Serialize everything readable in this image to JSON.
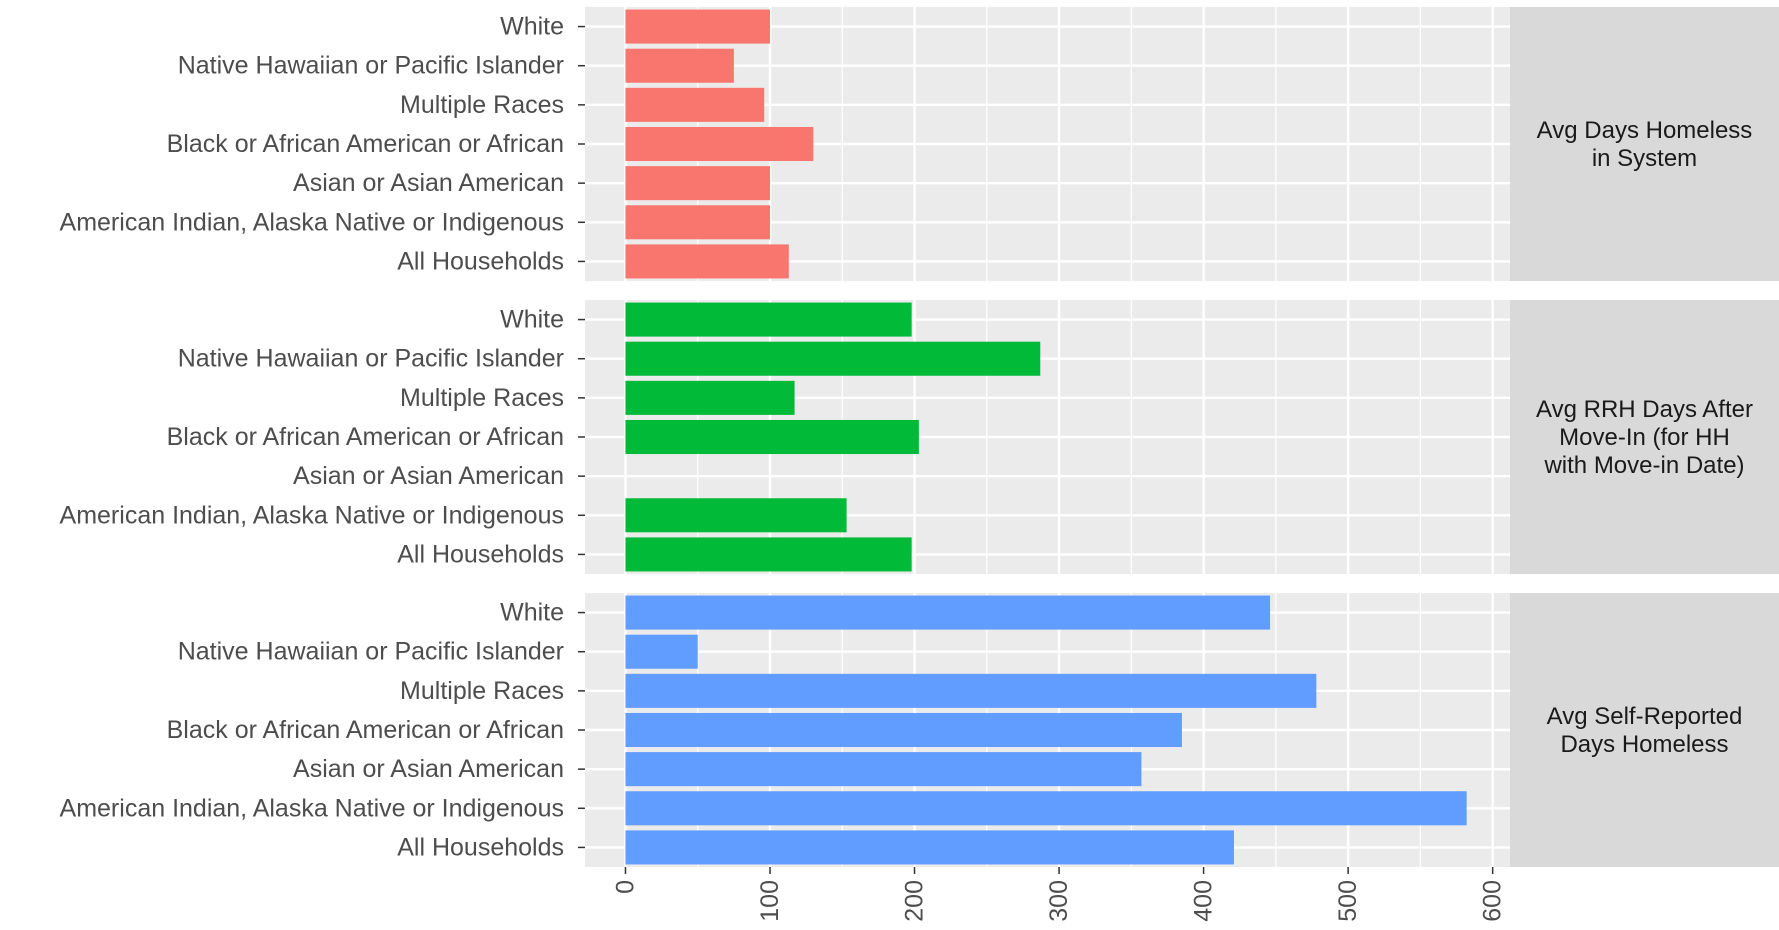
{
  "chart_data": [
    {
      "type": "bar",
      "orientation": "horizontal",
      "facet_label": "Avg Days Homeless in System",
      "facet_label_lines": [
        "Avg Days Homeless",
        "in System"
      ],
      "color": "#F8766D",
      "categories": [
        "White",
        "Native Hawaiian or Pacific Islander",
        "Multiple Races",
        "Black or African American or African",
        "Asian or Asian American",
        "American Indian, Alaska Native or Indigenous",
        "All Households"
      ],
      "values": [
        100,
        75,
        96,
        130,
        100,
        100,
        113
      ]
    },
    {
      "type": "bar",
      "orientation": "horizontal",
      "facet_label": "Avg RRH Days After Move-In (for HH with Move-in Date)",
      "facet_label_lines": [
        "Avg RRH Days After",
        "Move-In (for HH",
        "with Move-in Date)"
      ],
      "color": "#00BA38",
      "categories": [
        "White",
        "Native Hawaiian or Pacific Islander",
        "Multiple Races",
        "Black or African American or African",
        "Asian or Asian American",
        "American Indian, Alaska Native or Indigenous",
        "All Households"
      ],
      "values": [
        198,
        287,
        117,
        203,
        null,
        153,
        198
      ]
    },
    {
      "type": "bar",
      "orientation": "horizontal",
      "facet_label": "Avg Self-Reported Days Homeless",
      "facet_label_lines": [
        "Avg Self-Reported",
        "Days Homeless"
      ],
      "color": "#619CFF",
      "categories": [
        "White",
        "Native Hawaiian or Pacific Islander",
        "Multiple Races",
        "Black or African American or African",
        "Asian or Asian American",
        "American Indian, Alaska Native or Indigenous",
        "All Households"
      ],
      "values": [
        446,
        50,
        478,
        385,
        357,
        582,
        421
      ]
    }
  ],
  "x_axis": {
    "ticks": [
      0,
      100,
      200,
      300,
      400,
      500,
      600
    ],
    "tick_labels": [
      "0",
      "100",
      "200",
      "300",
      "400",
      "500",
      "600"
    ],
    "xlim": [
      -28,
      612
    ]
  },
  "colors": {
    "panel_background": "#EBEBEB",
    "strip_background": "#D9D9D9",
    "grid": "#FFFFFF"
  }
}
